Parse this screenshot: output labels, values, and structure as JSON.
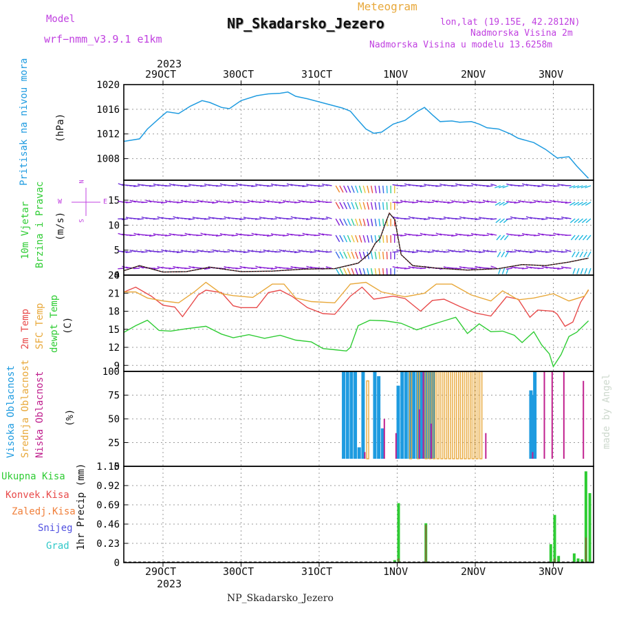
{
  "header": {
    "title_overlay": "Meteogram",
    "station": "NP_Skadarsko_Jezero",
    "model_label": "Model",
    "model_name": "wrf−nmm_v3.9.1 e1km",
    "coords": "lon,lat (19.15E, 42.2812N)",
    "altitude": "Nadmorska Visina 2m",
    "model_altitude": "Nadmorska Visina u modelu 13.6258m",
    "footer_station": "NP_Skadarsko_Jezero",
    "watermark": "made by Angel"
  },
  "colors": {
    "pressure": "#1e9be0",
    "t2m": "#e84a4a",
    "sfc": "#e8a83a",
    "dewpt": "#2ecc33",
    "high_cloud": "#1e9be0",
    "mid_cloud": "#e8a83a",
    "low_cloud": "#c0208e",
    "precip_total": "#2ecc33",
    "precip_conv": "#e84a4a",
    "precip_frz": "#f07f3a",
    "snow": "#5050e0",
    "hail": "#30c8c8",
    "wind_compass": "#c040e0",
    "grid": "#999999"
  },
  "time_axis": {
    "year": "2023",
    "labels": [
      "29OCT",
      "30OCT",
      "31OCT",
      "1NOV",
      "2NOV",
      "3NOV"
    ]
  },
  "panels": {
    "pressure": {
      "title": "Pritisak na nivou mora",
      "unit": "(hPa)"
    },
    "wind": {
      "title_1": "10m Vjetar",
      "title_2": "Brzina i Pravac",
      "unit": "(m/s)",
      "compass": {
        "n": "N",
        "s": "S",
        "e": "E",
        "w": "W"
      }
    },
    "temp": {
      "label_t2m": "2m Temp",
      "label_sfc": "SFC Temp",
      "label_dew": "dewpt Temp",
      "unit": "(C)"
    },
    "cloud": {
      "label_high": "Visoka Oblacnost",
      "label_mid": "Srednja Oblacnost",
      "label_low": "Niska Oblacnost",
      "unit": "(%)"
    },
    "precip": {
      "legend": [
        "Ukupna Kisa",
        "Konvek.Kisa",
        "Zaledj.Kisa",
        "Snijeg",
        "Grad"
      ],
      "unit": "1hr Precip (mm)"
    }
  },
  "chart_data": [
    {
      "type": "line",
      "title": "Pritisak na nivou mora",
      "ylabel": "(hPa)",
      "x_unit": "days since 29OCT 00Z",
      "ylim": [
        1004.5,
        1020
      ],
      "yticks": [
        "1020",
        "1016",
        "1012",
        "1008"
      ],
      "series": [
        {
          "name": "Pritisak na nivou mora",
          "points": [
            [
              -0.5,
              1010.8
            ],
            [
              -0.3,
              1011.2
            ],
            [
              -0.2,
              1012.8
            ],
            [
              -0.05,
              1014.5
            ],
            [
              0.05,
              1015.6
            ],
            [
              0.2,
              1015.3
            ],
            [
              0.35,
              1016.5
            ],
            [
              0.5,
              1017.4
            ],
            [
              0.6,
              1017.1
            ],
            [
              0.75,
              1016.3
            ],
            [
              0.85,
              1016.1
            ],
            [
              1.0,
              1017.4
            ],
            [
              1.2,
              1018.2
            ],
            [
              1.35,
              1018.5
            ],
            [
              1.5,
              1018.6
            ],
            [
              1.6,
              1018.8
            ],
            [
              1.7,
              1018.1
            ],
            [
              1.85,
              1017.7
            ],
            [
              2.0,
              1017.2
            ],
            [
              2.15,
              1016.7
            ],
            [
              2.3,
              1016.2
            ],
            [
              2.4,
              1015.7
            ],
            [
              2.5,
              1014.2
            ],
            [
              2.6,
              1012.8
            ],
            [
              2.7,
              1012.1
            ],
            [
              2.8,
              1012.3
            ],
            [
              2.95,
              1013.6
            ],
            [
              3.1,
              1014.2
            ],
            [
              3.25,
              1015.6
            ],
            [
              3.35,
              1016.3
            ],
            [
              3.45,
              1015.1
            ],
            [
              3.55,
              1014.0
            ],
            [
              3.7,
              1014.1
            ],
            [
              3.8,
              1013.9
            ],
            [
              3.95,
              1014.0
            ],
            [
              4.05,
              1013.6
            ],
            [
              4.15,
              1013.0
            ],
            [
              4.3,
              1012.8
            ],
            [
              4.45,
              1012.0
            ],
            [
              4.55,
              1011.3
            ],
            [
              4.75,
              1010.6
            ],
            [
              4.9,
              1009.5
            ],
            [
              5.05,
              1008.1
            ],
            [
              5.2,
              1008.3
            ],
            [
              5.3,
              1006.8
            ],
            [
              5.45,
              1004.8
            ]
          ]
        }
      ]
    },
    {
      "type": "scatter",
      "title": "10m Vjetar Brzina i Pravac",
      "ylabel": "(m/s)",
      "ylim": [
        0,
        19
      ],
      "yticks": [
        "15",
        "10",
        "5",
        "0"
      ],
      "series": [
        {
          "name": "10m Vjetar",
          "points": [
            [
              -0.5,
              0.9
            ],
            [
              -0.3,
              1.9
            ],
            [
              0.0,
              0.6
            ],
            [
              0.3,
              0.7
            ],
            [
              0.6,
              1.6
            ],
            [
              1.0,
              0.7
            ],
            [
              1.4,
              0.8
            ],
            [
              1.8,
              1.2
            ],
            [
              2.2,
              1.3
            ],
            [
              2.5,
              2.4
            ],
            [
              2.65,
              4.4
            ],
            [
              2.72,
              6.4
            ],
            [
              2.78,
              7.3
            ],
            [
              2.85,
              10.4
            ],
            [
              2.9,
              12.4
            ],
            [
              2.97,
              11.1
            ],
            [
              3.05,
              4.1
            ],
            [
              3.2,
              1.9
            ],
            [
              3.5,
              1.4
            ],
            [
              3.9,
              1.0
            ],
            [
              4.3,
              1.3
            ],
            [
              4.6,
              2.1
            ],
            [
              4.9,
              1.9
            ],
            [
              5.2,
              2.6
            ],
            [
              5.45,
              3.4
            ]
          ]
        }
      ]
    },
    {
      "type": "line",
      "title": "2m Temp / SFC Temp / dewpt Temp",
      "ylabel": "(C)",
      "ylim": [
        8,
        24
      ],
      "yticks": [
        "24",
        "21",
        "18",
        "15",
        "12",
        "9"
      ],
      "series": [
        {
          "name": "2m Temp",
          "points": [
            [
              -0.5,
              21.2
            ],
            [
              -0.35,
              22.0
            ],
            [
              -0.15,
              20.5
            ],
            [
              0.0,
              19.0
            ],
            [
              0.15,
              18.7
            ],
            [
              0.25,
              17.1
            ],
            [
              0.45,
              20.7
            ],
            [
              0.55,
              21.5
            ],
            [
              0.75,
              21.1
            ],
            [
              0.9,
              18.9
            ],
            [
              1.0,
              18.6
            ],
            [
              1.2,
              18.6
            ],
            [
              1.35,
              21.1
            ],
            [
              1.5,
              21.5
            ],
            [
              1.65,
              20.5
            ],
            [
              1.85,
              18.6
            ],
            [
              2.05,
              17.6
            ],
            [
              2.2,
              17.5
            ],
            [
              2.4,
              20.5
            ],
            [
              2.55,
              22.0
            ],
            [
              2.7,
              20.0
            ],
            [
              2.95,
              20.5
            ],
            [
              3.1,
              20.1
            ],
            [
              3.3,
              18.0
            ],
            [
              3.45,
              19.8
            ],
            [
              3.6,
              20.0
            ],
            [
              3.8,
              18.8
            ],
            [
              4.0,
              17.7
            ],
            [
              4.2,
              17.2
            ],
            [
              4.4,
              20.4
            ],
            [
              4.55,
              20.0
            ],
            [
              4.7,
              17.0
            ],
            [
              4.8,
              18.2
            ],
            [
              5.0,
              18.0
            ],
            [
              5.05,
              17.5
            ],
            [
              5.15,
              15.5
            ],
            [
              5.25,
              16.2
            ],
            [
              5.35,
              19.5
            ],
            [
              5.45,
              21.5
            ]
          ]
        },
        {
          "name": "SFC Temp",
          "points": [
            [
              -0.5,
              21.2
            ],
            [
              -0.35,
              21.2
            ],
            [
              -0.2,
              20.2
            ],
            [
              0.0,
              19.7
            ],
            [
              0.2,
              19.4
            ],
            [
              0.4,
              21.2
            ],
            [
              0.55,
              22.8
            ],
            [
              0.75,
              20.9
            ],
            [
              0.9,
              20.6
            ],
            [
              1.15,
              20.3
            ],
            [
              1.4,
              22.5
            ],
            [
              1.55,
              22.5
            ],
            [
              1.7,
              20.2
            ],
            [
              1.9,
              19.6
            ],
            [
              2.2,
              19.4
            ],
            [
              2.4,
              22.5
            ],
            [
              2.6,
              22.8
            ],
            [
              2.8,
              21.2
            ],
            [
              3.1,
              20.4
            ],
            [
              3.35,
              21.0
            ],
            [
              3.5,
              22.5
            ],
            [
              3.7,
              22.5
            ],
            [
              3.95,
              20.7
            ],
            [
              4.2,
              19.7
            ],
            [
              4.35,
              21.4
            ],
            [
              4.55,
              19.9
            ],
            [
              4.75,
              20.2
            ],
            [
              5.0,
              20.9
            ],
            [
              5.2,
              19.7
            ],
            [
              5.4,
              20.5
            ],
            [
              5.45,
              21.6
            ]
          ]
        },
        {
          "name": "dewpt Temp",
          "points": [
            [
              -0.5,
              14.5
            ],
            [
              -0.35,
              15.6
            ],
            [
              -0.2,
              16.5
            ],
            [
              -0.05,
              14.8
            ],
            [
              0.1,
              14.7
            ],
            [
              0.3,
              15.1
            ],
            [
              0.55,
              15.5
            ],
            [
              0.75,
              14.2
            ],
            [
              0.9,
              13.6
            ],
            [
              1.1,
              14.1
            ],
            [
              1.3,
              13.5
            ],
            [
              1.5,
              14.0
            ],
            [
              1.7,
              13.2
            ],
            [
              1.9,
              12.9
            ],
            [
              2.05,
              11.8
            ],
            [
              2.2,
              11.6
            ],
            [
              2.35,
              11.4
            ],
            [
              2.4,
              12.0
            ],
            [
              2.5,
              15.6
            ],
            [
              2.65,
              16.5
            ],
            [
              2.85,
              16.4
            ],
            [
              3.05,
              16.0
            ],
            [
              3.25,
              14.9
            ],
            [
              3.45,
              15.8
            ],
            [
              3.6,
              16.4
            ],
            [
              3.75,
              17.0
            ],
            [
              3.9,
              14.3
            ],
            [
              4.05,
              15.9
            ],
            [
              4.2,
              14.6
            ],
            [
              4.35,
              14.7
            ],
            [
              4.5,
              14.0
            ],
            [
              4.6,
              12.8
            ],
            [
              4.75,
              14.6
            ],
            [
              4.85,
              12.4
            ],
            [
              4.95,
              10.9
            ],
            [
              5.0,
              8.8
            ],
            [
              5.1,
              10.8
            ],
            [
              5.2,
              13.8
            ],
            [
              5.3,
              14.5
            ],
            [
              5.45,
              16.4
            ]
          ]
        }
      ]
    },
    {
      "type": "bar",
      "title": "Visoka / Srednja / Niska Oblacnost",
      "ylabel": "(%)",
      "ylim": [
        0,
        100
      ],
      "yticks": [
        "100",
        "75",
        "50",
        "25",
        "0"
      ],
      "series": [
        {
          "name": "Visoka Oblacnost",
          "x": [
            2.3,
            2.35,
            2.4,
            2.45,
            2.5,
            2.55,
            2.7,
            2.75,
            2.8,
            3.0,
            3.05,
            3.1,
            3.15,
            3.2,
            3.25,
            3.3,
            3.35,
            3.4,
            3.45,
            4.7,
            4.72,
            4.75
          ],
          "values": [
            100,
            100,
            100,
            100,
            20,
            100,
            100,
            95,
            40,
            85,
            100,
            100,
            100,
            100,
            100,
            100,
            100,
            100,
            100,
            80,
            75,
            100
          ]
        },
        {
          "name": "Srednja Oblacnost",
          "x": [
            2.6,
            3.15,
            3.25,
            3.35,
            3.4,
            3.45,
            3.5,
            3.55,
            3.6,
            3.65,
            3.7,
            3.75,
            3.8,
            3.85,
            3.9,
            3.95,
            4.0,
            4.05
          ],
          "values": [
            90,
            100,
            100,
            100,
            100,
            100,
            100,
            100,
            100,
            100,
            100,
            100,
            100,
            100,
            100,
            100,
            100,
            100
          ]
        },
        {
          "name": "Niska Oblacnost",
          "x": [
            2.55,
            2.8,
            2.95,
            3.25,
            3.3,
            3.4,
            4.1,
            4.7,
            4.85,
            4.95,
            5.1,
            5.35
          ],
          "values": [
            15,
            50,
            35,
            60,
            100,
            45,
            35,
            15,
            100,
            100,
            100,
            90
          ]
        }
      ]
    },
    {
      "type": "bar",
      "title": "1hr Precip",
      "ylabel": "1hr Precip (mm)",
      "ylim": [
        0,
        1.15
      ],
      "yticks": [
        "1.15",
        "0.92",
        "0.69",
        "0.46",
        "0.23",
        "0"
      ],
      "series": [
        {
          "name": "Ukupna Kisa",
          "x": [
            2.95,
            3.0,
            3.35,
            4.95,
            5.0,
            5.05,
            5.25,
            5.3,
            5.35,
            5.4,
            5.45
          ],
          "values": [
            0.03,
            0.71,
            0.47,
            0.22,
            0.57,
            0.08,
            0.11,
            0.05,
            0.04,
            1.09,
            0.83
          ]
        },
        {
          "name": "Konvek.Kisa",
          "x": [
            3.0,
            3.35,
            5.0,
            5.4
          ],
          "values": [
            0.05,
            0.45,
            0.05,
            0.3
          ]
        }
      ]
    }
  ]
}
